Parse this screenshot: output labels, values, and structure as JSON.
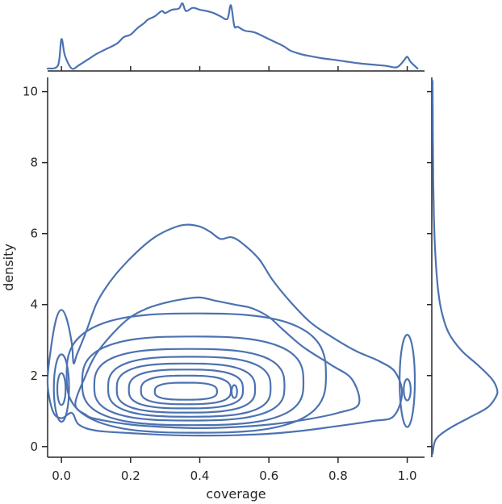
{
  "chart_data": {
    "type": "jointplot-kde-contour",
    "xlabel": "coverage",
    "ylabel": "density",
    "xlim": [
      -0.04,
      1.05
    ],
    "ylim": [
      -0.3,
      10.4
    ],
    "x_ticks": [
      "0.0",
      "0.2",
      "0.4",
      "0.6",
      "0.8",
      "1.0"
    ],
    "x_tick_values": [
      0.0,
      0.2,
      0.4,
      0.6,
      0.8,
      1.0
    ],
    "y_ticks": [
      "0",
      "2",
      "4",
      "6",
      "8",
      "10"
    ],
    "y_tick_values": [
      0,
      2,
      4,
      6,
      8,
      10
    ],
    "grid": false,
    "line_color": "#4c72b0",
    "main_contours": {
      "description": "bivariate KDE contour lines, main mode near coverage 0.35, density 1.6",
      "center_mode": [
        0.35,
        1.6
      ],
      "levels": [
        {
          "cx": 0.36,
          "cy": 1.55,
          "rx": 0.09,
          "ry": 0.25
        },
        {
          "cx": 0.36,
          "cy": 1.58,
          "rx": 0.13,
          "ry": 0.42
        },
        {
          "cx": 0.36,
          "cy": 1.6,
          "rx": 0.165,
          "ry": 0.57
        },
        {
          "cx": 0.36,
          "cy": 1.62,
          "rx": 0.2,
          "ry": 0.72
        },
        {
          "cx": 0.37,
          "cy": 1.65,
          "rx": 0.235,
          "ry": 0.88
        },
        {
          "cx": 0.37,
          "cy": 1.7,
          "rx": 0.275,
          "ry": 1.05
        },
        {
          "cx": 0.38,
          "cy": 1.8,
          "rx": 0.32,
          "ry": 1.3
        },
        {
          "cx": 0.39,
          "cy": 2.0,
          "rx": 0.375,
          "ry": 1.75
        }
      ],
      "outer_contour": [
        [
          0.0,
          0.8
        ],
        [
          0.03,
          0.95
        ],
        [
          0.05,
          0.62
        ],
        [
          0.1,
          0.45
        ],
        [
          0.2,
          0.38
        ],
        [
          0.3,
          0.33
        ],
        [
          0.4,
          0.31
        ],
        [
          0.5,
          0.32
        ],
        [
          0.6,
          0.36
        ],
        [
          0.7,
          0.45
        ],
        [
          0.8,
          0.58
        ],
        [
          0.9,
          0.72
        ],
        [
          0.96,
          0.85
        ],
        [
          0.985,
          1.5
        ],
        [
          0.965,
          2.1
        ],
        [
          0.92,
          2.4
        ],
        [
          0.85,
          2.7
        ],
        [
          0.78,
          3.1
        ],
        [
          0.72,
          3.5
        ],
        [
          0.66,
          4.1
        ],
        [
          0.61,
          4.7
        ],
        [
          0.57,
          5.3
        ],
        [
          0.52,
          5.75
        ],
        [
          0.49,
          5.9
        ],
        [
          0.46,
          5.85
        ],
        [
          0.43,
          6.05
        ],
        [
          0.4,
          6.2
        ],
        [
          0.36,
          6.25
        ],
        [
          0.32,
          6.15
        ],
        [
          0.27,
          5.9
        ],
        [
          0.22,
          5.5
        ],
        [
          0.17,
          5.0
        ],
        [
          0.13,
          4.5
        ],
        [
          0.1,
          4.0
        ],
        [
          0.07,
          3.2
        ],
        [
          0.045,
          2.6
        ],
        [
          0.035,
          2.35
        ],
        [
          0.03,
          2.9
        ],
        [
          0.015,
          3.6
        ],
        [
          0.0,
          3.85
        ],
        [
          -0.015,
          3.6
        ],
        [
          -0.03,
          2.8
        ],
        [
          -0.04,
          1.8
        ],
        [
          -0.025,
          1.0
        ],
        [
          0.0,
          0.8
        ]
      ],
      "second_contour": [
        [
          0.04,
          1.2
        ],
        [
          0.07,
          0.9
        ],
        [
          0.1,
          0.78
        ],
        [
          0.2,
          0.62
        ],
        [
          0.3,
          0.55
        ],
        [
          0.4,
          0.52
        ],
        [
          0.5,
          0.55
        ],
        [
          0.6,
          0.62
        ],
        [
          0.7,
          0.75
        ],
        [
          0.8,
          0.95
        ],
        [
          0.86,
          1.2
        ],
        [
          0.84,
          1.9
        ],
        [
          0.78,
          2.3
        ],
        [
          0.7,
          2.8
        ],
        [
          0.64,
          3.3
        ],
        [
          0.6,
          3.65
        ],
        [
          0.55,
          3.9
        ],
        [
          0.5,
          4.0
        ],
        [
          0.45,
          4.1
        ],
        [
          0.4,
          4.2
        ],
        [
          0.35,
          4.15
        ],
        [
          0.3,
          4.05
        ],
        [
          0.25,
          3.9
        ],
        [
          0.2,
          3.65
        ],
        [
          0.15,
          3.2
        ],
        [
          0.1,
          2.6
        ],
        [
          0.07,
          2.0
        ],
        [
          0.04,
          1.2
        ]
      ],
      "secondary_blobs": [
        {
          "cx": 0.0,
          "cy": 1.65,
          "rx": 0.022,
          "ry": 0.95
        },
        {
          "cx": 0.0,
          "cy": 1.62,
          "rx": 0.012,
          "ry": 0.45
        },
        {
          "cx": 1.0,
          "cy": 1.85,
          "rx": 0.022,
          "ry": 1.3
        },
        {
          "cx": 1.0,
          "cy": 1.6,
          "rx": 0.01,
          "ry": 0.3
        },
        {
          "cx": 0.5,
          "cy": 1.55,
          "rx": 0.008,
          "ry": 0.18
        }
      ]
    },
    "top_marginal": {
      "description": "marginal KDE of coverage",
      "x": [
        -0.04,
        -0.01,
        0.0,
        0.01,
        0.03,
        0.05,
        0.08,
        0.1,
        0.13,
        0.16,
        0.18,
        0.2,
        0.22,
        0.24,
        0.25,
        0.27,
        0.29,
        0.3,
        0.32,
        0.34,
        0.35,
        0.36,
        0.38,
        0.4,
        0.42,
        0.44,
        0.46,
        0.48,
        0.49,
        0.5,
        0.51,
        0.53,
        0.56,
        0.6,
        0.64,
        0.66,
        0.68,
        0.7,
        0.72,
        0.75,
        0.78,
        0.82,
        0.86,
        0.9,
        0.94,
        0.97,
        0.99,
        1.0,
        1.01,
        1.03
      ],
      "y": [
        0.0,
        0.05,
        0.45,
        0.2,
        0.0,
        0.05,
        0.15,
        0.22,
        0.3,
        0.38,
        0.48,
        0.52,
        0.62,
        0.7,
        0.75,
        0.8,
        0.88,
        0.85,
        0.9,
        0.92,
        1.0,
        0.88,
        0.93,
        0.9,
        0.88,
        0.85,
        0.8,
        0.76,
        0.97,
        0.65,
        0.64,
        0.58,
        0.55,
        0.45,
        0.35,
        0.28,
        0.24,
        0.21,
        0.19,
        0.16,
        0.14,
        0.11,
        0.08,
        0.06,
        0.04,
        0.02,
        0.12,
        0.18,
        0.1,
        0.0
      ]
    },
    "right_marginal": {
      "description": "marginal KDE of density",
      "y": [
        -0.2,
        0.2,
        0.5,
        0.8,
        1.1,
        1.4,
        1.6,
        1.9,
        2.3,
        2.7,
        3.2,
        3.8,
        4.5,
        5.5,
        6.5,
        7.5,
        8.5,
        9.5,
        10.3
      ],
      "x": [
        0.0,
        0.05,
        0.25,
        0.55,
        0.85,
        0.98,
        1.0,
        0.92,
        0.7,
        0.45,
        0.25,
        0.14,
        0.08,
        0.04,
        0.02,
        0.01,
        0.005,
        0.002,
        0.0
      ]
    }
  }
}
